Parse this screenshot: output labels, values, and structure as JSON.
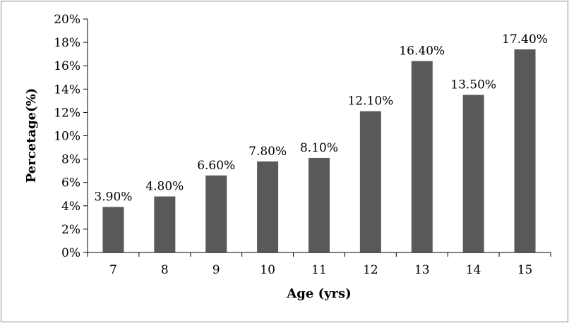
{
  "chart_data": {
    "type": "bar",
    "categories": [
      "7",
      "8",
      "9",
      "10",
      "11",
      "12",
      "13",
      "14",
      "15"
    ],
    "values": [
      3.9,
      4.8,
      6.6,
      7.8,
      8.1,
      12.1,
      16.4,
      13.5,
      17.4
    ],
    "data_labels": [
      "3.90%",
      "4.80%",
      "6.60%",
      "7.80%",
      "8.10%",
      "12.10%",
      "16.40%",
      "13.50%",
      "17.40%"
    ],
    "y_ticks": [
      "0%",
      "2%",
      "4%",
      "6%",
      "8%",
      "10%",
      "12%",
      "14%",
      "16%",
      "18%",
      "20%"
    ],
    "xlabel": "Age (yrs)",
    "ylabel": "Percetage(%)",
    "ylim": [
      0,
      20
    ],
    "grid": false,
    "legend": "none",
    "bar_color": "#595959",
    "axis_color": "#000000",
    "frame_color": "#888888"
  }
}
